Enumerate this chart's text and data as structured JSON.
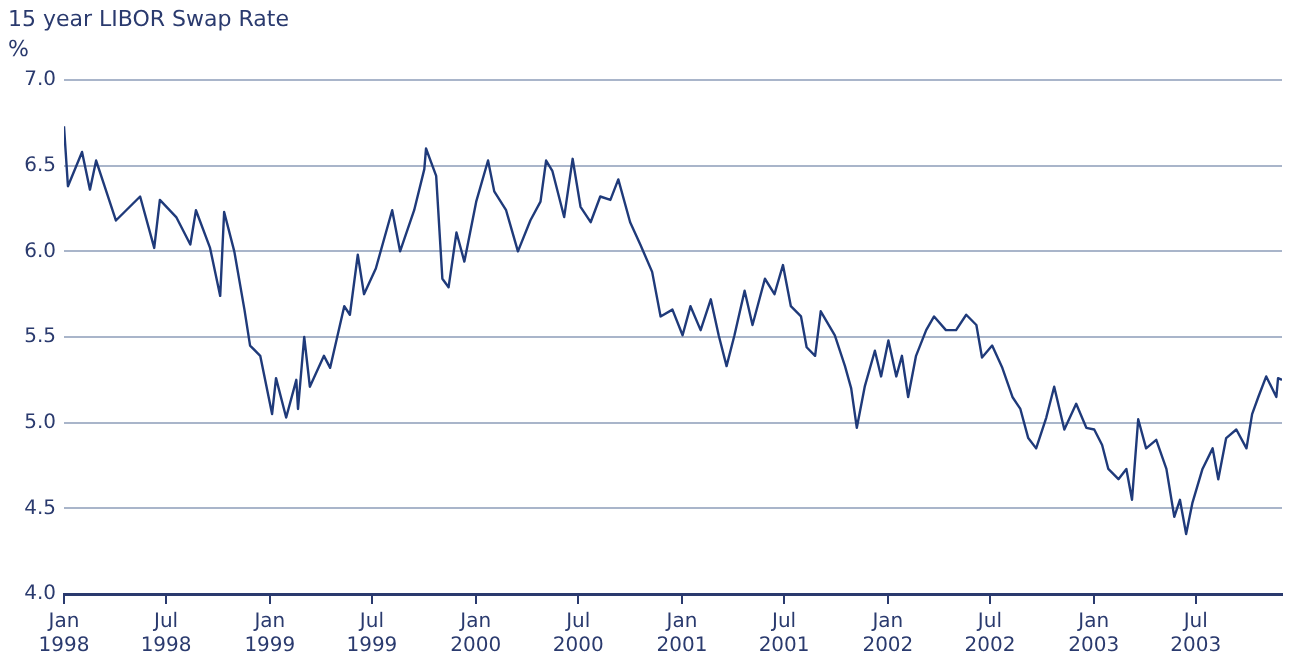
{
  "chart_data": {
    "type": "line",
    "title": "15 year LIBOR Swap Rate",
    "ylabel": "%",
    "x": [
      "1998-01-01",
      "1998-01-08",
      "1998-02-02",
      "1998-02-16",
      "1998-02-27",
      "1998-04-03",
      "1998-05-16",
      "1998-06-10",
      "1998-06-20",
      "1998-07-19",
      "1998-08-13",
      "1998-08-23",
      "1998-09-17",
      "1998-10-05",
      "1998-10-12",
      "1998-10-30",
      "1998-11-17",
      "1998-11-27",
      "1998-12-15",
      "1999-01-05",
      "1999-01-12",
      "1999-01-30",
      "1999-02-17",
      "1999-02-20",
      "1999-03-03",
      "1999-03-13",
      "1999-04-07",
      "1999-04-18",
      "1999-05-13",
      "1999-05-23",
      "1999-06-06",
      "1999-06-17",
      "1999-07-08",
      "1999-08-06",
      "1999-08-20",
      "1999-09-14",
      "1999-10-02",
      "1999-10-05",
      "1999-10-23",
      "1999-11-03",
      "1999-11-14",
      "1999-11-28",
      "1999-12-12",
      "2000-01-02",
      "2000-01-23",
      "2000-02-03",
      "2000-02-24",
      "2000-03-16",
      "2000-04-07",
      "2000-04-25",
      "2000-05-05",
      "2000-05-16",
      "2000-06-06",
      "2000-06-21",
      "2000-07-05",
      "2000-07-23",
      "2000-08-09",
      "2000-08-27",
      "2000-09-10",
      "2000-10-01",
      "2000-10-19",
      "2000-11-09",
      "2000-11-24",
      "2000-12-15",
      "2001-01-02",
      "2001-01-16",
      "2001-02-03",
      "2001-02-21",
      "2001-03-07",
      "2001-03-21",
      "2001-04-04",
      "2001-04-22",
      "2001-05-06",
      "2001-05-28",
      "2001-06-14",
      "2001-06-29",
      "2001-07-13",
      "2001-07-31",
      "2001-08-10",
      "2001-08-25",
      "2001-09-04",
      "2001-09-29",
      "2001-10-17",
      "2001-10-28",
      "2001-11-07",
      "2001-11-21",
      "2001-12-09",
      "2001-12-20",
      "2002-01-02",
      "2002-01-16",
      "2002-01-26",
      "2002-02-06",
      "2002-02-20",
      "2002-03-10",
      "2002-03-24",
      "2002-04-14",
      "2002-05-02",
      "2002-05-20",
      "2002-06-07",
      "2002-06-17",
      "2002-07-05",
      "2002-07-23",
      "2002-08-10",
      "2002-08-24",
      "2002-09-07",
      "2002-09-21",
      "2002-10-09",
      "2002-10-23",
      "2002-11-10",
      "2002-12-01",
      "2002-12-19",
      "2003-01-02",
      "2003-01-16",
      "2003-01-27",
      "2003-02-14",
      "2003-02-28",
      "2003-03-10",
      "2003-03-21",
      "2003-04-04",
      "2003-04-22",
      "2003-05-10",
      "2003-05-24",
      "2003-06-03",
      "2003-06-14",
      "2003-06-25",
      "2003-07-13",
      "2003-07-31",
      "2003-08-10",
      "2003-08-24",
      "2003-09-11",
      "2003-09-29",
      "2003-10-09",
      "2003-10-20",
      "2003-11-03",
      "2003-11-21",
      "2003-11-24",
      "2003-12-01"
    ],
    "series": [
      {
        "color": "#1f3a7a",
        "values": [
          6.73,
          6.38,
          6.58,
          6.36,
          6.53,
          6.18,
          6.32,
          6.02,
          6.3,
          6.2,
          6.04,
          6.24,
          6.02,
          5.74,
          6.23,
          6.0,
          5.66,
          5.45,
          5.39,
          5.05,
          5.26,
          5.03,
          5.25,
          5.08,
          5.5,
          5.21,
          5.39,
          5.32,
          5.68,
          5.63,
          5.98,
          5.75,
          5.9,
          6.24,
          6.0,
          6.24,
          6.48,
          6.6,
          6.44,
          5.84,
          5.79,
          6.11,
          5.94,
          6.29,
          6.53,
          6.35,
          6.24,
          6.0,
          6.18,
          6.29,
          6.53,
          6.47,
          6.2,
          6.54,
          6.26,
          6.17,
          6.32,
          6.3,
          6.42,
          6.17,
          6.04,
          5.88,
          5.62,
          5.66,
          5.51,
          5.68,
          5.54,
          5.72,
          5.51,
          5.33,
          5.51,
          5.77,
          5.57,
          5.84,
          5.75,
          5.92,
          5.68,
          5.62,
          5.44,
          5.39,
          5.65,
          5.51,
          5.33,
          5.2,
          4.97,
          5.21,
          5.42,
          5.27,
          5.48,
          5.27,
          5.39,
          5.15,
          5.39,
          5.54,
          5.62,
          5.54,
          5.54,
          5.63,
          5.57,
          5.38,
          5.45,
          5.32,
          5.15,
          5.08,
          4.91,
          4.85,
          5.03,
          5.21,
          4.96,
          5.11,
          4.97,
          4.96,
          4.87,
          4.73,
          4.67,
          4.73,
          4.55,
          5.02,
          4.85,
          4.9,
          4.73,
          4.45,
          4.55,
          4.35,
          4.53,
          4.73,
          4.85,
          4.67,
          4.91,
          4.96,
          4.85,
          5.05,
          5.15,
          5.27,
          5.15,
          5.26,
          5.25
        ]
      }
    ],
    "xlim": [
      "1998-01-01",
      "2003-12-01"
    ],
    "xticks": [
      {
        "value": "1998-01-01",
        "label": "Jan 1998"
      },
      {
        "value": "1998-07-01",
        "label": "Jul 1998"
      },
      {
        "value": "1999-01-01",
        "label": "Jan 1999"
      },
      {
        "value": "1999-07-01",
        "label": "Jul 1999"
      },
      {
        "value": "2000-01-01",
        "label": "Jan 2000"
      },
      {
        "value": "2000-07-01",
        "label": "Jul 2000"
      },
      {
        "value": "2001-01-01",
        "label": "Jan 2001"
      },
      {
        "value": "2001-07-01",
        "label": "Jul 2001"
      },
      {
        "value": "2002-01-01",
        "label": "Jan 2002"
      },
      {
        "value": "2002-07-01",
        "label": "Jul 2002"
      },
      {
        "value": "2003-01-01",
        "label": "Jan 2003"
      },
      {
        "value": "2003-07-01",
        "label": "Jul 2003"
      }
    ],
    "ylim": [
      4,
      7
    ],
    "yticks": [
      {
        "value": 4,
        "label": "4.0"
      },
      {
        "value": 4.5,
        "label": "4.5"
      },
      {
        "value": 5,
        "label": "5.0"
      },
      {
        "value": 5.5,
        "label": "5.5"
      },
      {
        "value": 6,
        "label": "6.0"
      },
      {
        "value": 6.5,
        "label": "6.5"
      },
      {
        "value": 7,
        "label": "7.0"
      }
    ],
    "grid": "y",
    "legend": false,
    "marker": "none",
    "line_style": "solid"
  }
}
